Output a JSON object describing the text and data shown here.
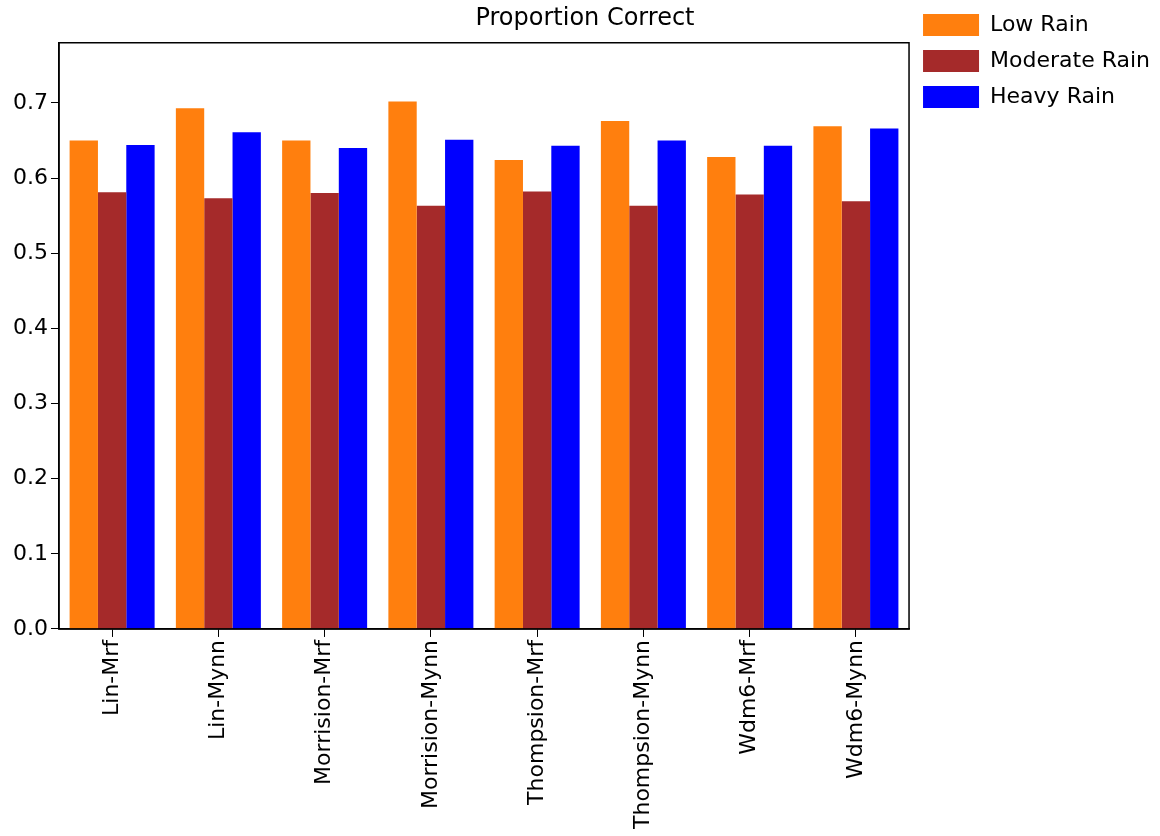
{
  "chart_data": {
    "type": "bar",
    "title": "Proportion Correct",
    "categories": [
      "Lin-Mrf",
      "Lin-Mynn",
      "Morrision-Mrf",
      "Morrision-Mynn",
      "Thompsion-Mrf",
      "Thompsion-Mynn",
      "Wdm6-Mrf",
      "Wdm6-Mynn"
    ],
    "series": [
      {
        "name": "Low Rain",
        "color": "#ff7f0e",
        "values": [
          0.65,
          0.693,
          0.65,
          0.702,
          0.624,
          0.676,
          0.628,
          0.669
        ]
      },
      {
        "name": "Moderate Rain",
        "color": "#a52a2a",
        "values": [
          0.581,
          0.573,
          0.58,
          0.563,
          0.582,
          0.563,
          0.578,
          0.569
        ]
      },
      {
        "name": "Heavy Rain",
        "color": "#0000ff",
        "values": [
          0.644,
          0.661,
          0.64,
          0.651,
          0.643,
          0.65,
          0.643,
          0.666
        ]
      }
    ],
    "ylim": [
      0,
      0.78
    ],
    "yticks": [
      {
        "value": 0,
        "label": "0.0"
      },
      0.1,
      0.2,
      0.3,
      0.4,
      0.5,
      0.6,
      0.7
    ],
    "grid": false,
    "legend": "top right"
  }
}
